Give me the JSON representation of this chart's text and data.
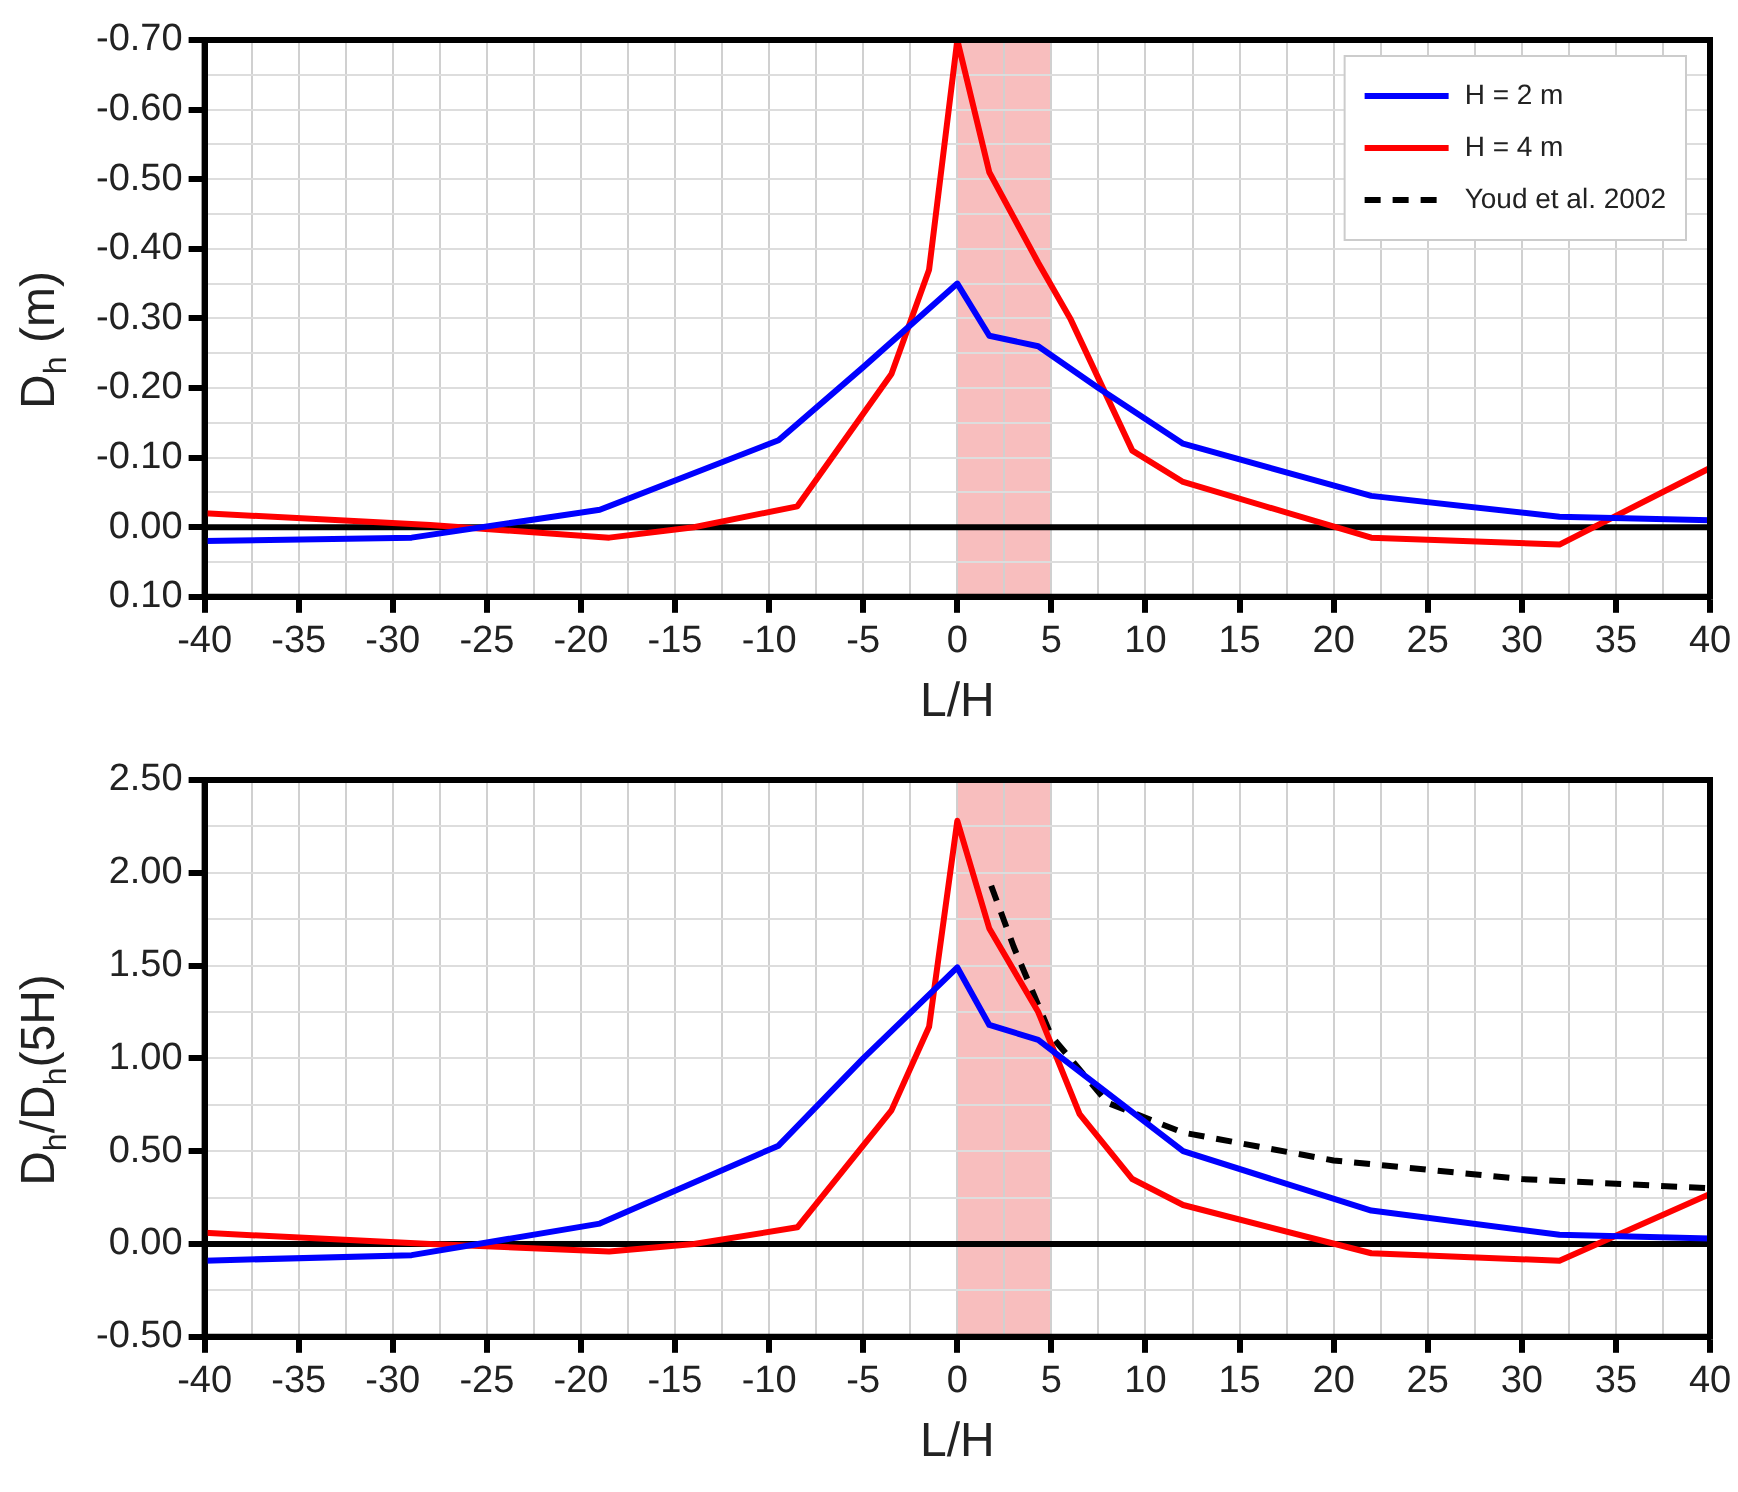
{
  "chart_data": [
    {
      "type": "line",
      "xlabel": "L/H",
      "ylabel": "D$_{h}$ (m)",
      "xlim": [
        -40,
        40
      ],
      "xticks": [
        -40,
        {
          "value": -37.5,
          "label": null
        },
        -35,
        {
          "value": -32.5,
          "label": null
        },
        -30,
        {
          "value": -27.5,
          "label": null
        },
        -25,
        {
          "value": -22.5,
          "label": null
        },
        -20,
        {
          "value": -17.5,
          "label": null
        },
        -15,
        {
          "value": -12.5,
          "label": null
        },
        -10,
        {
          "value": -7.5,
          "label": null
        },
        -5,
        {
          "value": -2.5,
          "label": null
        },
        0,
        {
          "value": 2.5,
          "label": null
        },
        5,
        {
          "value": 7.5,
          "label": null
        },
        10,
        {
          "value": 12.5,
          "label": null
        },
        15,
        {
          "value": 17.5,
          "label": null
        },
        20,
        {
          "value": 22.5,
          "label": null
        },
        25,
        {
          "value": 27.5,
          "label": null
        },
        30,
        {
          "value": 32.5,
          "label": null
        },
        35,
        {
          "value": 37.5,
          "label": null
        },
        40
      ],
      "ylim": [
        0.1,
        -0.7
      ],
      "yticks": [
        {
          "value": 0.1,
          "label": "0.10"
        },
        {
          "value": 0.05,
          "label": null
        },
        {
          "value": 0,
          "label": "0.00"
        },
        {
          "value": -0.05,
          "label": null
        },
        {
          "value": -0.1,
          "label": "-0.10"
        },
        {
          "value": -0.15,
          "label": null
        },
        {
          "value": -0.2,
          "label": "-0.20"
        },
        {
          "value": -0.25,
          "label": null
        },
        {
          "value": -0.3,
          "label": "-0.30"
        },
        {
          "value": -0.35,
          "label": null
        },
        {
          "value": -0.4,
          "label": "-0.40"
        },
        {
          "value": -0.45,
          "label": null
        },
        {
          "value": -0.5,
          "label": "-0.50"
        },
        {
          "value": -0.55,
          "label": null
        },
        {
          "value": -0.6,
          "label": "-0.60"
        },
        {
          "value": -0.65,
          "label": null
        },
        {
          "value": -0.7,
          "label": "-0.70"
        }
      ],
      "grid": true,
      "legend": "top right",
      "marker": "none",
      "bands": [
        {
          "axis": "x",
          "from": 0,
          "to": 5,
          "color": "#f7b3b3"
        }
      ],
      "ref_lines": [
        {
          "axis": "y",
          "value": 0,
          "color": "#000000"
        }
      ],
      "series": [
        {
          "name": "H = 2 m",
          "color": "#0000ff",
          "line_style": "solid",
          "x": [
            -40,
            -29,
            -19,
            -9.5,
            -5,
            0,
            1.7,
            4.3,
            7.5,
            12,
            22,
            32,
            40
          ],
          "values": [
            0.02,
            0.015,
            -0.025,
            -0.125,
            -0.23,
            -0.35,
            -0.275,
            -0.26,
            -0.2,
            -0.12,
            -0.045,
            -0.015,
            -0.01
          ]
        },
        {
          "name": "H = 4 m",
          "color": "#ff0000",
          "line_style": "solid",
          "x": [
            -40,
            -28,
            -18.5,
            -14,
            -8.5,
            -3.5,
            -1.5,
            0,
            1.7,
            4.3,
            6,
            9.3,
            12,
            22,
            32,
            40
          ],
          "values": [
            -0.02,
            -0.003,
            0.015,
            0,
            -0.03,
            -0.22,
            -0.37,
            -0.7,
            -0.51,
            -0.38,
            -0.3,
            -0.11,
            -0.065,
            0.015,
            0.025,
            -0.085
          ]
        },
        {
          "name": "Youd et al. 2002",
          "color": "#000000",
          "line_style": "dashed"
        }
      ]
    },
    {
      "type": "line",
      "xlabel": "L/H",
      "ylabel": "D$_{h}$/D$_{h}$(5H)",
      "xlim": [
        -40,
        40
      ],
      "xticks": [
        -40,
        {
          "value": -37.5,
          "label": null
        },
        -35,
        {
          "value": -32.5,
          "label": null
        },
        -30,
        {
          "value": -27.5,
          "label": null
        },
        -25,
        {
          "value": -22.5,
          "label": null
        },
        -20,
        {
          "value": -17.5,
          "label": null
        },
        -15,
        {
          "value": -12.5,
          "label": null
        },
        -10,
        {
          "value": -7.5,
          "label": null
        },
        -5,
        {
          "value": -2.5,
          "label": null
        },
        0,
        {
          "value": 2.5,
          "label": null
        },
        5,
        {
          "value": 7.5,
          "label": null
        },
        10,
        {
          "value": 12.5,
          "label": null
        },
        15,
        {
          "value": 17.5,
          "label": null
        },
        20,
        {
          "value": 22.5,
          "label": null
        },
        25,
        {
          "value": 27.5,
          "label": null
        },
        30,
        {
          "value": 32.5,
          "label": null
        },
        35,
        {
          "value": 37.5,
          "label": null
        },
        40
      ],
      "ylim": [
        -0.5,
        2.5
      ],
      "yticks": [
        {
          "value": -0.5,
          "label": "-0.50"
        },
        {
          "value": -0.25,
          "label": null
        },
        {
          "value": 0,
          "label": "0.00"
        },
        {
          "value": 0.25,
          "label": null
        },
        {
          "value": 0.5,
          "label": "0.50"
        },
        {
          "value": 0.75,
          "label": null
        },
        {
          "value": 1,
          "label": "1.00"
        },
        {
          "value": 1.25,
          "label": null
        },
        {
          "value": 1.5,
          "label": "1.50"
        },
        {
          "value": 1.75,
          "label": null
        },
        {
          "value": 2,
          "label": "2.00"
        },
        {
          "value": 2.25,
          "label": null
        },
        {
          "value": 2.5,
          "label": "2.50"
        }
      ],
      "grid": true,
      "marker": "none",
      "bands": [
        {
          "axis": "x",
          "from": 0,
          "to": 5,
          "color": "#f7b3b3"
        }
      ],
      "ref_lines": [
        {
          "axis": "y",
          "value": 0,
          "color": "#000000"
        }
      ],
      "series": [
        {
          "color": "#0000ff",
          "line_style": "solid",
          "x": [
            -40,
            -29,
            -19,
            -9.5,
            -5,
            0,
            1.7,
            4.3,
            7.5,
            12,
            22,
            32,
            40
          ],
          "values": [
            -0.09,
            -0.06,
            0.11,
            0.53,
            1.0,
            1.49,
            1.18,
            1.1,
            0.85,
            0.5,
            0.18,
            0.05,
            0.03
          ]
        },
        {
          "color": "#ff0000",
          "line_style": "solid",
          "x": [
            -40,
            -28,
            -18.5,
            -14,
            -8.5,
            -3.5,
            -1.5,
            0,
            1.7,
            4.3,
            6.5,
            9.3,
            12,
            22,
            32,
            40
          ],
          "values": [
            0.06,
            0,
            -0.04,
            0,
            0.09,
            0.72,
            1.17,
            2.28,
            1.7,
            1.25,
            0.7,
            0.35,
            0.21,
            -0.05,
            -0.09,
            0.27
          ]
        },
        {
          "color": "#000000",
          "line_style": "dashed",
          "x": [
            1.8,
            3,
            5,
            8,
            12,
            20,
            30,
            40
          ],
          "values": [
            1.93,
            1.6,
            1.12,
            0.76,
            0.6,
            0.45,
            0.35,
            0.3
          ]
        }
      ]
    }
  ]
}
